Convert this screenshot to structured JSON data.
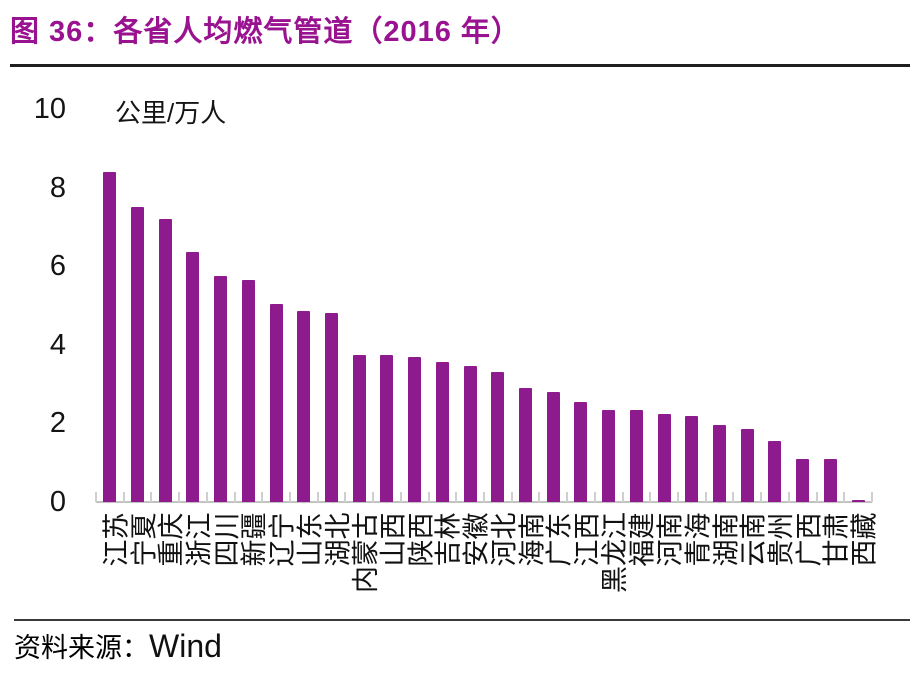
{
  "header": {
    "title": "图 36：各省人均燃气管道（2016 年）"
  },
  "colors": {
    "title": "#99128F",
    "bar": "#8E1B8E",
    "axis_line": "#C2C2C2",
    "tick": "#CFCFCF",
    "text": "#141414"
  },
  "source": {
    "label": "资料来源：",
    "value": "Wind"
  },
  "chart_data": {
    "type": "bar",
    "title": "各省人均燃气管道（2016 年）",
    "unit_label": "公里/万人",
    "xlabel": "",
    "ylabel": "公里/万人",
    "ylim": [
      0,
      10
    ],
    "yticks": [
      0,
      2,
      4,
      6,
      8,
      10
    ],
    "grid": false,
    "legend": "none",
    "bar_color": "#8E1B8E",
    "categories": [
      "江苏",
      "宁夏",
      "重庆",
      "浙江",
      "四川",
      "新疆",
      "辽宁",
      "山东",
      "湖北",
      "内蒙古",
      "山西",
      "陕西",
      "吉林",
      "安徽",
      "河北",
      "海南",
      "广东",
      "江西",
      "黑龙江",
      "福建",
      "河南",
      "青海",
      "湖南",
      "云南",
      "贵州",
      "广西",
      "甘肃",
      "西藏"
    ],
    "values": [
      8.4,
      7.5,
      7.2,
      6.35,
      5.75,
      5.65,
      5.05,
      4.85,
      4.8,
      3.75,
      3.75,
      3.7,
      3.55,
      3.45,
      3.3,
      2.9,
      2.8,
      2.55,
      2.35,
      2.35,
      2.25,
      2.2,
      1.95,
      1.85,
      1.55,
      1.1,
      1.1,
      0.05
    ]
  }
}
